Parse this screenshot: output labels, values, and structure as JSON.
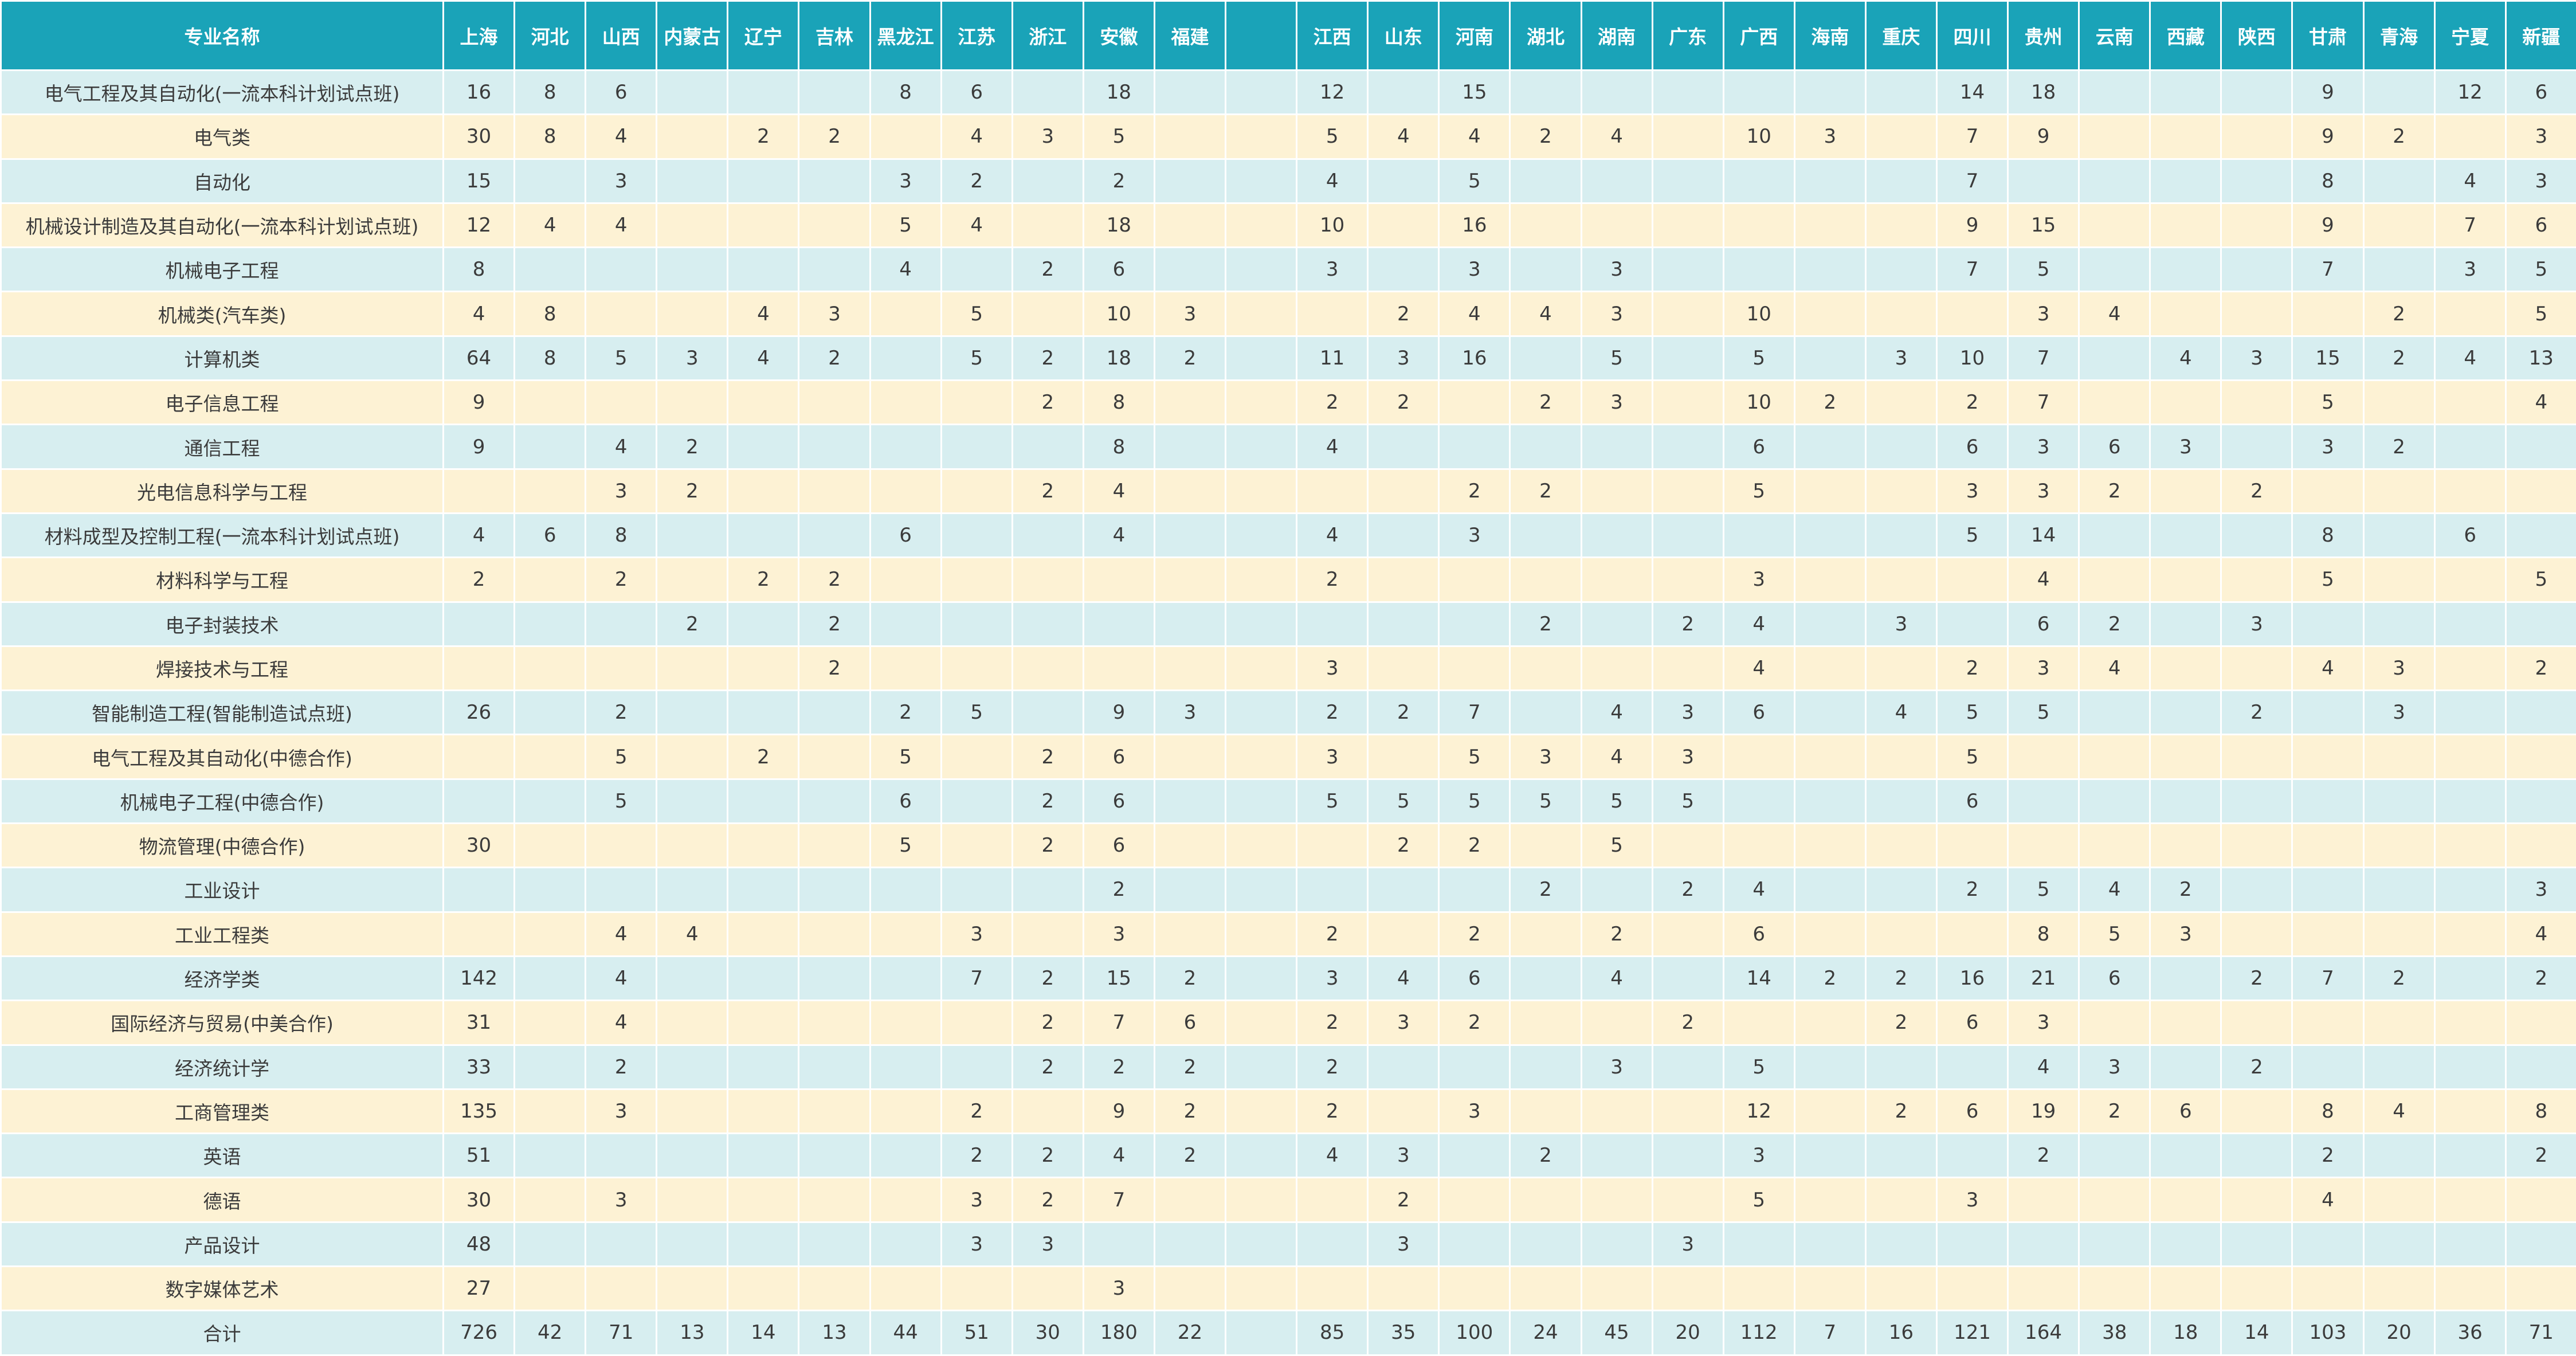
{
  "table": {
    "header_label": "专业名称",
    "provinces": [
      "上海",
      "河北",
      "山西",
      "内蒙古",
      "辽宁",
      "吉林",
      "黑龙江",
      "江苏",
      "浙江",
      "安徽",
      "福建",
      "",
      "江西",
      "山东",
      "河南",
      "湖北",
      "湖南",
      "广东",
      "广西",
      "海南",
      "重庆",
      "四川",
      "贵州",
      "云南",
      "西藏",
      "陕西",
      "甘肃",
      "青海",
      "宁夏",
      "新疆"
    ],
    "rows": [
      {
        "major": "电气工程及其自动化(一流本科计划试点班)",
        "cells": [
          "16",
          "8",
          "6",
          "",
          "",
          "",
          "8",
          "6",
          "",
          "18",
          "",
          "",
          "12",
          "",
          "15",
          "",
          "",
          "",
          "",
          "",
          "",
          "14",
          "18",
          "",
          "",
          "",
          "9",
          "",
          "12",
          "6"
        ]
      },
      {
        "major": "电气类",
        "cells": [
          "30",
          "8",
          "4",
          "",
          "2",
          "2",
          "",
          "4",
          "3",
          "5",
          "",
          "",
          "5",
          "4",
          "4",
          "2",
          "4",
          "",
          "10",
          "3",
          "",
          "7",
          "9",
          "",
          "",
          "",
          "9",
          "2",
          "",
          "3"
        ]
      },
      {
        "major": "自动化",
        "cells": [
          "15",
          "",
          "3",
          "",
          "",
          "",
          "3",
          "2",
          "",
          "2",
          "",
          "",
          "4",
          "",
          "5",
          "",
          "",
          "",
          "",
          "",
          "",
          "7",
          "",
          "",
          "",
          "",
          "8",
          "",
          "4",
          "3"
        ]
      },
      {
        "major": "机械设计制造及其自动化(一流本科计划试点班)",
        "cells": [
          "12",
          "4",
          "4",
          "",
          "",
          "",
          "5",
          "4",
          "",
          "18",
          "",
          "",
          "10",
          "",
          "16",
          "",
          "",
          "",
          "",
          "",
          "",
          "9",
          "15",
          "",
          "",
          "",
          "9",
          "",
          "7",
          "6"
        ]
      },
      {
        "major": "机械电子工程",
        "cells": [
          "8",
          "",
          "",
          "",
          "",
          "",
          "4",
          "",
          "2",
          "6",
          "",
          "",
          "3",
          "",
          "3",
          "",
          "3",
          "",
          "",
          "",
          "",
          "7",
          "5",
          "",
          "",
          "",
          "7",
          "",
          "3",
          "5"
        ]
      },
      {
        "major": "机械类(汽车类)",
        "cells": [
          "4",
          "8",
          "",
          "",
          "4",
          "3",
          "",
          "5",
          "",
          "10",
          "3",
          "",
          "",
          "2",
          "4",
          "4",
          "3",
          "",
          "10",
          "",
          "",
          "",
          "3",
          "4",
          "",
          "",
          "",
          "2",
          "",
          "5"
        ]
      },
      {
        "major": "计算机类",
        "cells": [
          "64",
          "8",
          "5",
          "3",
          "4",
          "2",
          "",
          "5",
          "2",
          "18",
          "2",
          "",
          "11",
          "3",
          "16",
          "",
          "5",
          "",
          "5",
          "",
          "3",
          "10",
          "7",
          "",
          "4",
          "3",
          "15",
          "2",
          "4",
          "13"
        ]
      },
      {
        "major": "电子信息工程",
        "cells": [
          "9",
          "",
          "",
          "",
          "",
          "",
          "",
          "",
          "2",
          "8",
          "",
          "",
          "2",
          "2",
          "",
          "2",
          "3",
          "",
          "10",
          "2",
          "",
          "2",
          "7",
          "",
          "",
          "",
          "5",
          "",
          "",
          "4"
        ]
      },
      {
        "major": "通信工程",
        "cells": [
          "9",
          "",
          "4",
          "2",
          "",
          "",
          "",
          "",
          "",
          "8",
          "",
          "",
          "4",
          "",
          "",
          "",
          "",
          "",
          "6",
          "",
          "",
          "6",
          "3",
          "6",
          "3",
          "",
          "3",
          "2",
          "",
          ""
        ]
      },
      {
        "major": "光电信息科学与工程",
        "cells": [
          "",
          "",
          "3",
          "2",
          "",
          "",
          "",
          "",
          "2",
          "4",
          "",
          "",
          "",
          "",
          "2",
          "2",
          "",
          "",
          "5",
          "",
          "",
          "3",
          "3",
          "2",
          "",
          "2",
          "",
          "",
          "",
          ""
        ]
      },
      {
        "major": "材料成型及控制工程(一流本科计划试点班)",
        "cells": [
          "4",
          "6",
          "8",
          "",
          "",
          "",
          "6",
          "",
          "",
          "4",
          "",
          "",
          "4",
          "",
          "3",
          "",
          "",
          "",
          "",
          "",
          "",
          "5",
          "14",
          "",
          "",
          "",
          "8",
          "",
          "6",
          ""
        ]
      },
      {
        "major": "材料科学与工程",
        "cells": [
          "2",
          "",
          "2",
          "",
          "2",
          "2",
          "",
          "",
          "",
          "",
          "",
          "",
          "2",
          "",
          "",
          "",
          "",
          "",
          "3",
          "",
          "",
          "",
          "4",
          "",
          "",
          "",
          "5",
          "",
          "",
          "5"
        ]
      },
      {
        "major": "电子封装技术",
        "cells": [
          "",
          "",
          "",
          "2",
          "",
          "2",
          "",
          "",
          "",
          "",
          "",
          "",
          "",
          "",
          "",
          "2",
          "",
          "2",
          "4",
          "",
          "3",
          "",
          "6",
          "2",
          "",
          "3",
          "",
          "",
          "",
          ""
        ]
      },
      {
        "major": "焊接技术与工程",
        "cells": [
          "",
          "",
          "",
          "",
          "",
          "2",
          "",
          "",
          "",
          "",
          "",
          "",
          "3",
          "",
          "",
          "",
          "",
          "",
          "4",
          "",
          "",
          "2",
          "3",
          "4",
          "",
          "",
          "4",
          "3",
          "",
          "2"
        ]
      },
      {
        "major": "智能制造工程(智能制造试点班)",
        "cells": [
          "26",
          "",
          "2",
          "",
          "",
          "",
          "2",
          "5",
          "",
          "9",
          "3",
          "",
          "2",
          "2",
          "7",
          "",
          "4",
          "3",
          "6",
          "",
          "4",
          "5",
          "5",
          "",
          "",
          "2",
          "",
          "3",
          "",
          ""
        ]
      },
      {
        "major": "电气工程及其自动化(中德合作)",
        "cells": [
          "",
          "",
          "5",
          "",
          "2",
          "",
          "5",
          "",
          "2",
          "6",
          "",
          "",
          "3",
          "",
          "5",
          "3",
          "4",
          "3",
          "",
          "",
          "",
          "5",
          "",
          "",
          "",
          "",
          "",
          "",
          "",
          ""
        ]
      },
      {
        "major": "机械电子工程(中德合作)",
        "cells": [
          "",
          "",
          "5",
          "",
          "",
          "",
          "6",
          "",
          "2",
          "6",
          "",
          "",
          "5",
          "5",
          "5",
          "5",
          "5",
          "5",
          "",
          "",
          "",
          "6",
          "",
          "",
          "",
          "",
          "",
          "",
          "",
          ""
        ]
      },
      {
        "major": "物流管理(中德合作)",
        "cells": [
          "30",
          "",
          "",
          "",
          "",
          "",
          "5",
          "",
          "2",
          "6",
          "",
          "",
          "",
          "2",
          "2",
          "",
          "5",
          "",
          "",
          "",
          "",
          "",
          "",
          "",
          "",
          "",
          "",
          "",
          "",
          ""
        ]
      },
      {
        "major": "工业设计",
        "cells": [
          "",
          "",
          "",
          "",
          "",
          "",
          "",
          "",
          "",
          "2",
          "",
          "",
          "",
          "",
          "",
          "2",
          "",
          "2",
          "4",
          "",
          "",
          "2",
          "5",
          "4",
          "2",
          "",
          "",
          "",
          "",
          "3"
        ]
      },
      {
        "major": "工业工程类",
        "cells": [
          "",
          "",
          "4",
          "4",
          "",
          "",
          "",
          "3",
          "",
          "3",
          "",
          "",
          "2",
          "",
          "2",
          "",
          "2",
          "",
          "6",
          "",
          "",
          "",
          "8",
          "5",
          "3",
          "",
          "",
          "",
          "",
          "4"
        ]
      },
      {
        "major": "经济学类",
        "cells": [
          "142",
          "",
          "4",
          "",
          "",
          "",
          "",
          "7",
          "2",
          "15",
          "2",
          "",
          "3",
          "4",
          "6",
          "",
          "4",
          "",
          "14",
          "2",
          "2",
          "16",
          "21",
          "6",
          "",
          "2",
          "7",
          "2",
          "",
          "2"
        ]
      },
      {
        "major": "国际经济与贸易(中美合作)",
        "cells": [
          "31",
          "",
          "4",
          "",
          "",
          "",
          "",
          "",
          "2",
          "7",
          "6",
          "",
          "2",
          "3",
          "2",
          "",
          "",
          "2",
          "",
          "",
          "2",
          "6",
          "3",
          "",
          "",
          "",
          "",
          "",
          "",
          ""
        ]
      },
      {
        "major": "经济统计学",
        "cells": [
          "33",
          "",
          "2",
          "",
          "",
          "",
          "",
          "",
          "2",
          "2",
          "2",
          "",
          "2",
          "",
          "",
          "",
          "3",
          "",
          "5",
          "",
          "",
          "",
          "4",
          "3",
          "",
          "2",
          "",
          "",
          "",
          ""
        ]
      },
      {
        "major": "工商管理类",
        "cells": [
          "135",
          "",
          "3",
          "",
          "",
          "",
          "",
          "2",
          "",
          "9",
          "2",
          "",
          "2",
          "",
          "3",
          "",
          "",
          "",
          "12",
          "",
          "2",
          "6",
          "19",
          "2",
          "6",
          "",
          "8",
          "4",
          "",
          "8"
        ]
      },
      {
        "major": "英语",
        "cells": [
          "51",
          "",
          "",
          "",
          "",
          "",
          "",
          "2",
          "2",
          "4",
          "2",
          "",
          "4",
          "3",
          "",
          "2",
          "",
          "",
          "3",
          "",
          "",
          "",
          "2",
          "",
          "",
          "",
          "2",
          "",
          "",
          "2"
        ]
      },
      {
        "major": "德语",
        "cells": [
          "30",
          "",
          "3",
          "",
          "",
          "",
          "",
          "3",
          "2",
          "7",
          "",
          "",
          "",
          "2",
          "",
          "",
          "",
          "",
          "5",
          "",
          "",
          "3",
          "",
          "",
          "",
          "",
          "4",
          "",
          "",
          ""
        ]
      },
      {
        "major": "产品设计",
        "cells": [
          "48",
          "",
          "",
          "",
          "",
          "",
          "",
          "3",
          "3",
          "",
          "",
          "",
          "",
          "3",
          "",
          "",
          "",
          "3",
          "",
          "",
          "",
          "",
          "",
          "",
          "",
          "",
          "",
          "",
          "",
          ""
        ]
      },
      {
        "major": "数字媒体艺术",
        "cells": [
          "27",
          "",
          "",
          "",
          "",
          "",
          "",
          "",
          "",
          "3",
          "",
          "",
          "",
          "",
          "",
          "",
          "",
          "",
          "",
          "",
          "",
          "",
          "",
          "",
          "",
          "",
          "",
          "",
          "",
          ""
        ]
      }
    ],
    "total": {
      "major": "合计",
      "cells": [
        "726",
        "42",
        "71",
        "13",
        "14",
        "13",
        "44",
        "51",
        "30",
        "180",
        "22",
        "",
        "85",
        "35",
        "100",
        "24",
        "45",
        "20",
        "112",
        "7",
        "16",
        "121",
        "164",
        "38",
        "18",
        "14",
        "103",
        "20",
        "36",
        "71"
      ]
    }
  },
  "colors": {
    "header": "#1aa3b8",
    "row_blue": "#d7eef0",
    "row_yellow": "#fdf2d4",
    "text": "#3b3b3b"
  }
}
